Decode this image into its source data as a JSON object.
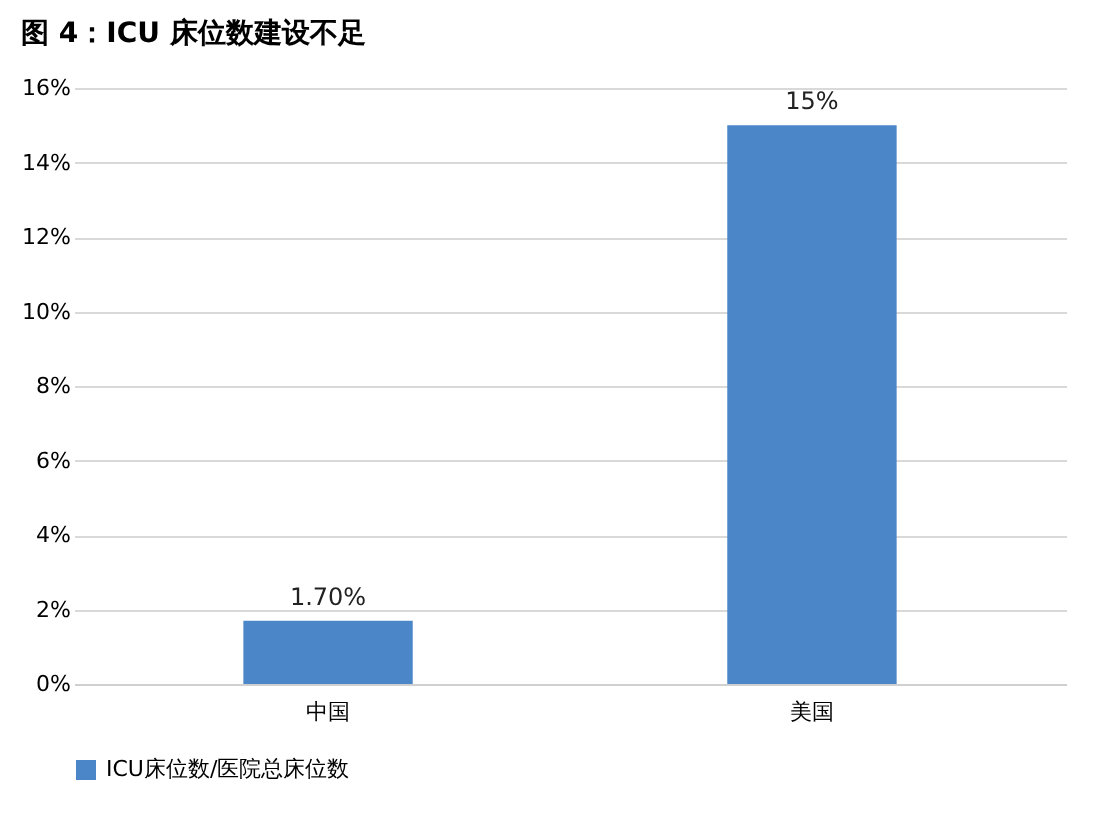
{
  "chart_data": {
    "type": "bar",
    "title": "图 4：ICU 床位数建设不足",
    "categories": [
      "中国",
      "美国"
    ],
    "series": [
      {
        "name": "ICU床位数/医院总床位数",
        "color": "#4a86c8",
        "values": [
          1.7,
          15
        ],
        "value_labels": [
          "1.70%",
          "15%"
        ]
      }
    ],
    "ylim": [
      0,
      16
    ],
    "yticks": [
      {
        "value": 0,
        "label": "0%"
      },
      {
        "value": 2,
        "label": "2%"
      },
      {
        "value": 4,
        "label": "4%"
      },
      {
        "value": 6,
        "label": "6%"
      },
      {
        "value": 8,
        "label": "8%"
      },
      {
        "value": 10,
        "label": "10%"
      },
      {
        "value": 12,
        "label": "12%"
      },
      {
        "value": 14,
        "label": "14%"
      },
      {
        "value": 16,
        "label": "16%"
      }
    ],
    "grid": "y",
    "legend": "bottom"
  }
}
